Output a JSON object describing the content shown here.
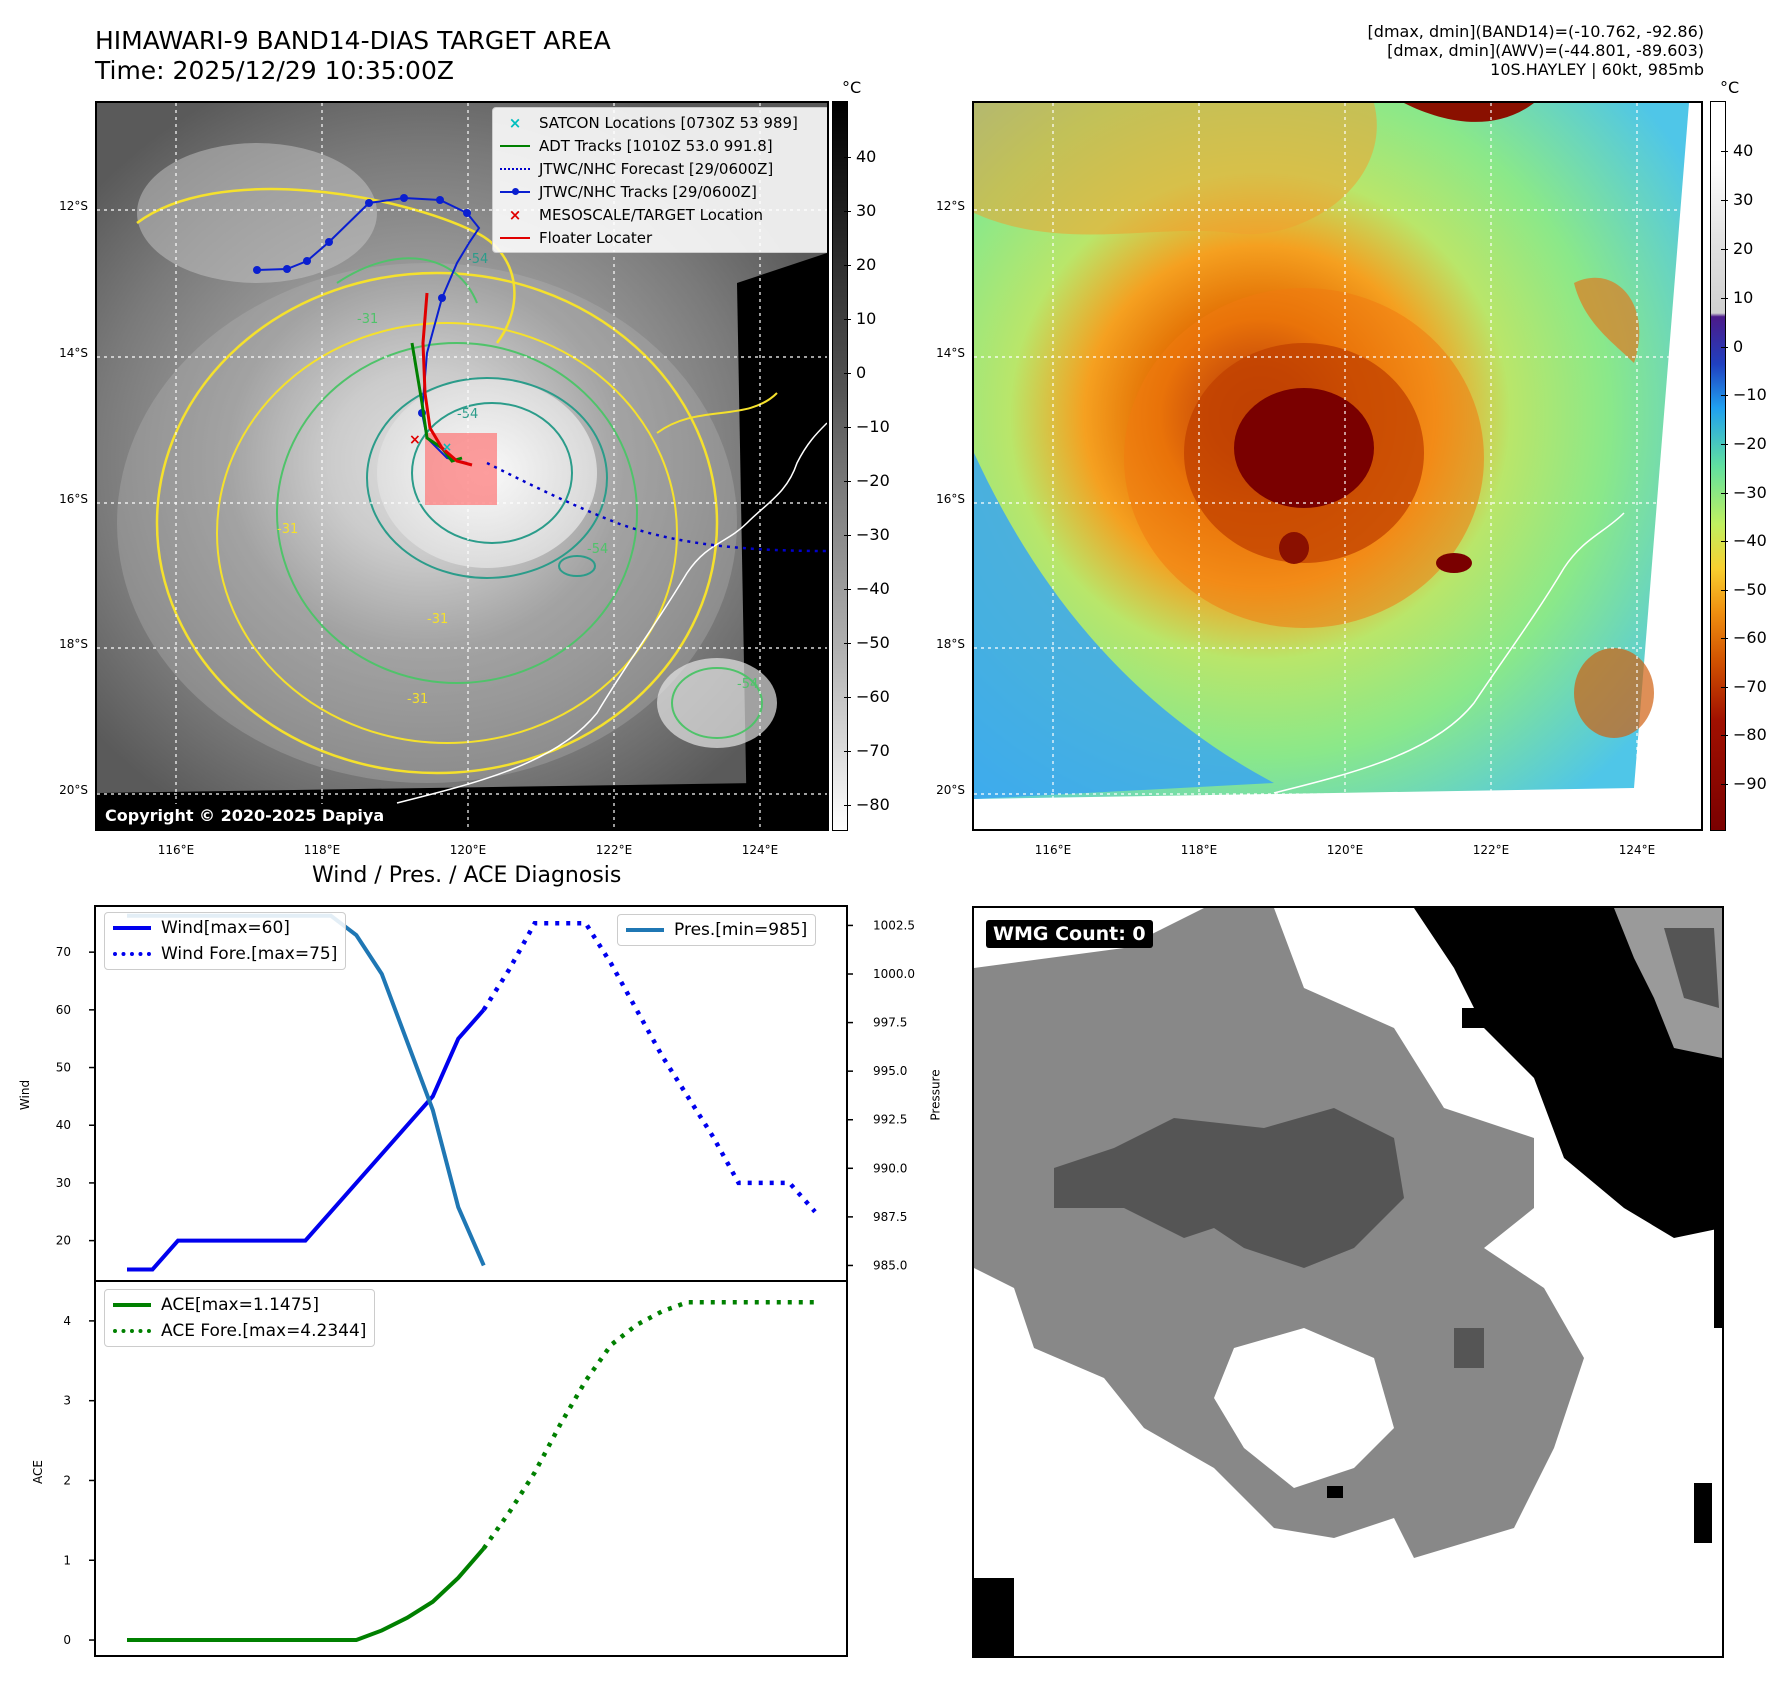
{
  "header": {
    "title_line1": "HIMAWARI-9 BAND14-DIAS TARGET AREA",
    "title_line2": "Time: 2025/12/29 10:35:00Z",
    "info_line1": "[dmax, dmin](BAND14)=(-10.762, -92.86)",
    "info_line2": "[dmax, dmin](AWV)=(-44.801, -89.603)",
    "info_line3": "10S.HAYLEY | 60kt, 985mb"
  },
  "map": {
    "lat_labels": [
      "12°S",
      "14°S",
      "16°S",
      "18°S",
      "20°S"
    ],
    "lon_labels": [
      "116°E",
      "118°E",
      "120°E",
      "122°E",
      "124°E"
    ],
    "copyright": "Copyright © 2020-2025 Dapiya",
    "contour_labels": [
      "-54",
      "-31",
      "-54",
      "-31",
      "-54",
      "-31",
      "-54",
      "-31"
    ]
  },
  "colorbar_left": {
    "unit": "°C",
    "ticks": [
      "40",
      "30",
      "20",
      "10",
      "0",
      "−10",
      "−20",
      "−30",
      "−40",
      "−50",
      "−60",
      "−70",
      "−80"
    ]
  },
  "colorbar_right": {
    "unit": "°C",
    "ticks": [
      "40",
      "30",
      "20",
      "10",
      "0",
      "−10",
      "−20",
      "−30",
      "−40",
      "−50",
      "−60",
      "−70",
      "−80",
      "−90"
    ]
  },
  "legend": {
    "satcon": "SATCON Locations [0730Z 53 989]",
    "adt": "ADT Tracks [1010Z 53.0 991.8]",
    "jtwc_forecast": "JTWC/NHC Forecast [29/0600Z]",
    "jtwc_tracks": "JTWC/NHC Tracks [29/0600Z]",
    "mesoscale": "MESOSCALE/TARGET Location",
    "floater": "Floater Locater"
  },
  "diagnosis": {
    "title": "Wind / Pres. / ACE Diagnosis",
    "wind_legend": "Wind[max=60]",
    "wind_fore_legend": "Wind Fore.[max=75]",
    "pres_legend": "Pres.[min=985]",
    "ace_legend": "ACE[max=1.1475]",
    "ace_fore_legend": "ACE Fore.[max=4.2344]",
    "wind_label": "Wind",
    "pres_label": "Pressure",
    "ace_label": "ACE"
  },
  "wmg": {
    "label": "WMG Count: 0"
  },
  "colors": {
    "wind": "#0000ee",
    "pressure": "#1f77b4",
    "ace": "#008000",
    "track": "#0a1fd0",
    "floater": "#e00000",
    "contour_yellow": "#f5e12c",
    "contour_green": "#4fc36a",
    "contour_teal": "#2b9c8a"
  },
  "chart_data": [
    {
      "type": "line",
      "title": "Wind / Pres. / ACE Diagnosis",
      "ylabel": "Wind",
      "ylim": [
        13,
        78
      ],
      "y_ticks": [
        20,
        30,
        40,
        50,
        60,
        70
      ],
      "x_count": 28,
      "series": [
        {
          "name": "Wind[max=60]",
          "style": "solid",
          "x": [
            0,
            1,
            2,
            3,
            4,
            5,
            6,
            7,
            8,
            9,
            10,
            11,
            12,
            13,
            14
          ],
          "values": [
            15,
            15,
            20,
            20,
            20,
            20,
            20,
            20,
            25,
            30,
            35,
            40,
            45,
            55,
            60
          ]
        },
        {
          "name": "Wind Fore.[max=75]",
          "style": "dotted",
          "x": [
            14,
            15,
            16,
            17,
            18,
            19,
            20,
            21,
            22,
            23,
            24,
            25,
            26,
            27
          ],
          "values": [
            60,
            67,
            75,
            75,
            75,
            68,
            60,
            52,
            45,
            38,
            30,
            30,
            30,
            25
          ]
        }
      ]
    },
    {
      "type": "line",
      "ylabel": "Pressure",
      "ylim": [
        984.2,
        1003.5
      ],
      "y_ticks": [
        985.0,
        987.5,
        990.0,
        992.5,
        995.0,
        997.5,
        1000.0,
        1002.5
      ],
      "x_count": 28,
      "series": [
        {
          "name": "Pres.[min=985]",
          "style": "solid",
          "x": [
            0,
            1,
            2,
            3,
            4,
            5,
            6,
            7,
            8,
            9,
            10,
            11,
            12,
            13,
            14
          ],
          "values": [
            1003,
            1003,
            1003,
            1003,
            1003,
            1003,
            1003,
            1003,
            1003,
            1002,
            1000,
            996.5,
            993,
            988,
            985
          ]
        }
      ]
    },
    {
      "type": "line",
      "ylabel": "ACE",
      "ylim": [
        -0.2,
        4.5
      ],
      "y_ticks": [
        0,
        1,
        2,
        3,
        4
      ],
      "x_count": 28,
      "series": [
        {
          "name": "ACE[max=1.1475]",
          "style": "solid",
          "x": [
            0,
            1,
            2,
            3,
            4,
            5,
            6,
            7,
            8,
            9,
            10,
            11,
            12,
            13,
            14
          ],
          "values": [
            0,
            0,
            0,
            0,
            0,
            0,
            0,
            0,
            0,
            0,
            0.12,
            0.28,
            0.48,
            0.78,
            1.1475
          ]
        },
        {
          "name": "ACE Fore.[max=4.2344]",
          "style": "dotted",
          "x": [
            14,
            15,
            16,
            17,
            18,
            19,
            20,
            21,
            22,
            23,
            24,
            25,
            26,
            27
          ],
          "values": [
            1.1475,
            1.6,
            2.1,
            2.7,
            3.25,
            3.7,
            3.95,
            4.12,
            4.2344,
            4.2344,
            4.2344,
            4.2344,
            4.2344,
            4.2344
          ]
        }
      ]
    }
  ]
}
